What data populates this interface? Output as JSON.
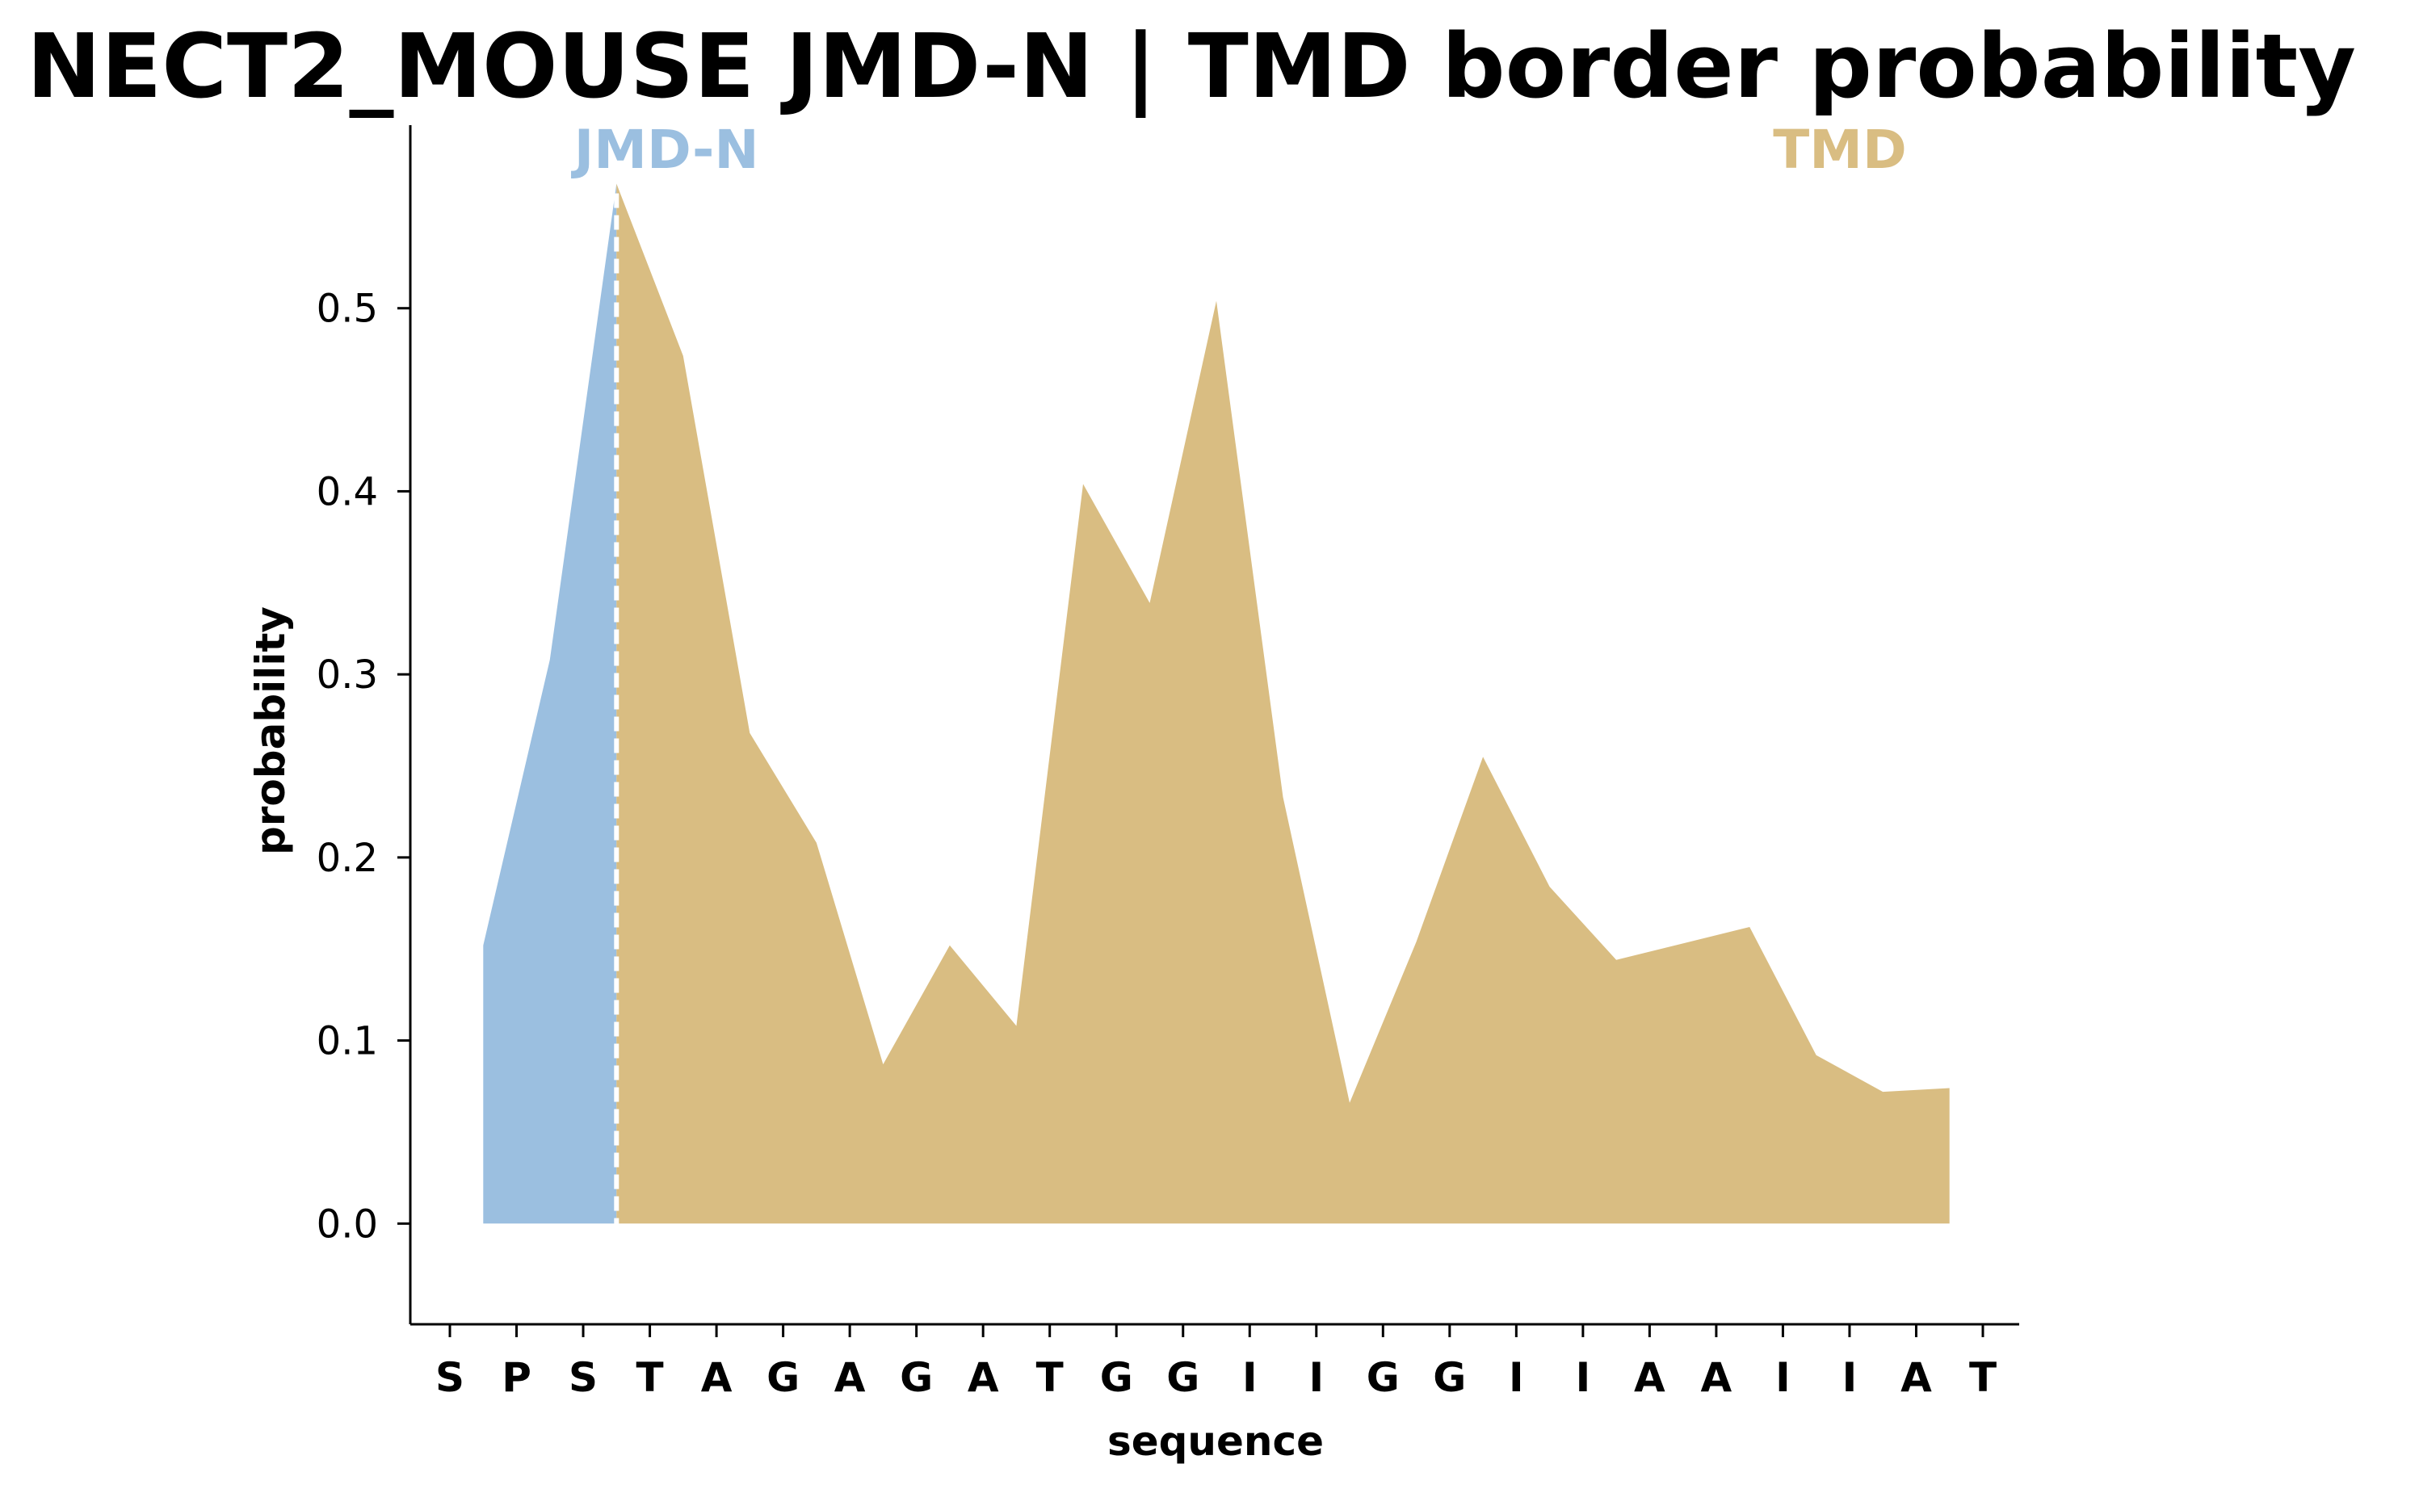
{
  "chart_data": {
    "type": "area",
    "title": "NECT2_MOUSE JMD-N | TMD border probability",
    "xlabel": "sequence",
    "ylabel": "probability",
    "ylim": [
      -0.055,
      0.6
    ],
    "yticks": [
      "0.0",
      "0.1",
      "0.2",
      "0.3",
      "0.4",
      "0.5"
    ],
    "ytick_values": [
      0.0,
      0.1,
      0.2,
      0.3,
      0.4,
      0.5
    ],
    "grid": false,
    "legend": "none",
    "categories": [
      "S",
      "P",
      "S",
      "T",
      "A",
      "G",
      "A",
      "G",
      "A",
      "T",
      "G",
      "G",
      "I",
      "I",
      "G",
      "G",
      "I",
      "I",
      "A",
      "A",
      "I",
      "I",
      "A",
      "T"
    ],
    "border_position": 2.5,
    "regions": [
      {
        "name": "JMD-N",
        "color": "#9bbfe0"
      },
      {
        "name": "TMD",
        "color": "#d9bd82"
      }
    ],
    "series": [
      {
        "x": [
          0.5,
          1.5,
          2.5,
          3.5,
          4.5,
          5.5,
          6.5,
          7.5,
          8.5,
          9.5,
          10.5,
          11.5,
          12.5,
          13.5,
          14.5,
          15.5,
          16.5,
          17.5,
          18.5,
          19.5,
          20.5,
          21.5,
          22.5
        ],
        "values": [
          0.152,
          0.308,
          0.568,
          0.474,
          0.268,
          0.208,
          0.087,
          0.152,
          0.108,
          0.404,
          0.339,
          0.504,
          0.233,
          0.066,
          0.154,
          0.255,
          0.184,
          0.144,
          0.153,
          0.162,
          0.092,
          0.072,
          0.074
        ]
      }
    ],
    "colors": {
      "jmd": "#9bbfe0",
      "tmd": "#d9bd82",
      "border_line": "#ffffff",
      "axis": "#000000"
    }
  }
}
